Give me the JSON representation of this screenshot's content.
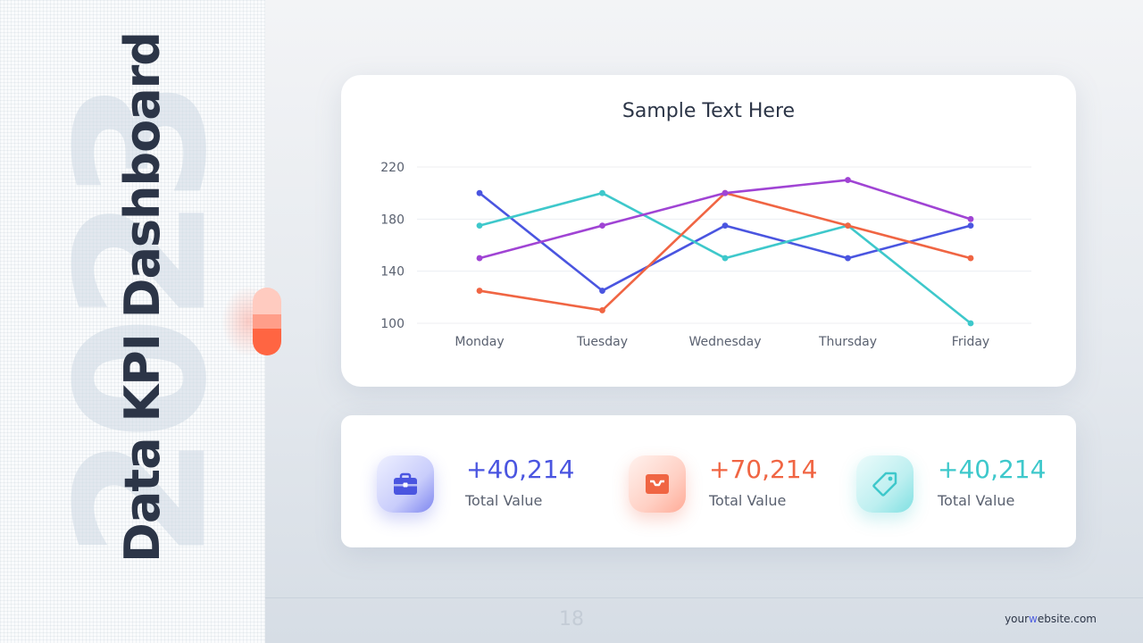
{
  "slide": {
    "title": "Data KPI Dashboard",
    "year_watermark": "2023",
    "page_number": "18",
    "website_prefix": "your",
    "website_highlight": "w",
    "website_suffix": "ebsite.com"
  },
  "chart_card": {
    "title": "Sample Text Here"
  },
  "chart_data": {
    "type": "line",
    "title": "Sample Text Here",
    "categories": [
      "Monday",
      "Tuesday",
      "Wednesday",
      "Thursday",
      "Friday"
    ],
    "ylim": [
      100,
      220
    ],
    "yticks": [
      220,
      180,
      140,
      100
    ],
    "grid": true,
    "series": [
      {
        "color": "#4a55e0",
        "values": [
          200,
          125,
          175,
          150,
          175
        ]
      },
      {
        "color": "#3ec8cb",
        "values": [
          175,
          200,
          150,
          175,
          100
        ]
      },
      {
        "color": "#f06543",
        "values": [
          125,
          110,
          200,
          175,
          150
        ]
      },
      {
        "color": "#a044d4",
        "values": [
          150,
          175,
          200,
          210,
          180
        ]
      }
    ]
  },
  "kpis": [
    {
      "value": "+40,214",
      "label": "Total Value",
      "color": "#4a55e0",
      "icon": "briefcase-icon"
    },
    {
      "value": "+70,214",
      "label": "Total Value",
      "color": "#f06543",
      "icon": "inbox-tray-icon"
    },
    {
      "value": "+40,214",
      "label": "Total Value",
      "color": "#3ec8cb",
      "icon": "price-tag-icon"
    }
  ]
}
